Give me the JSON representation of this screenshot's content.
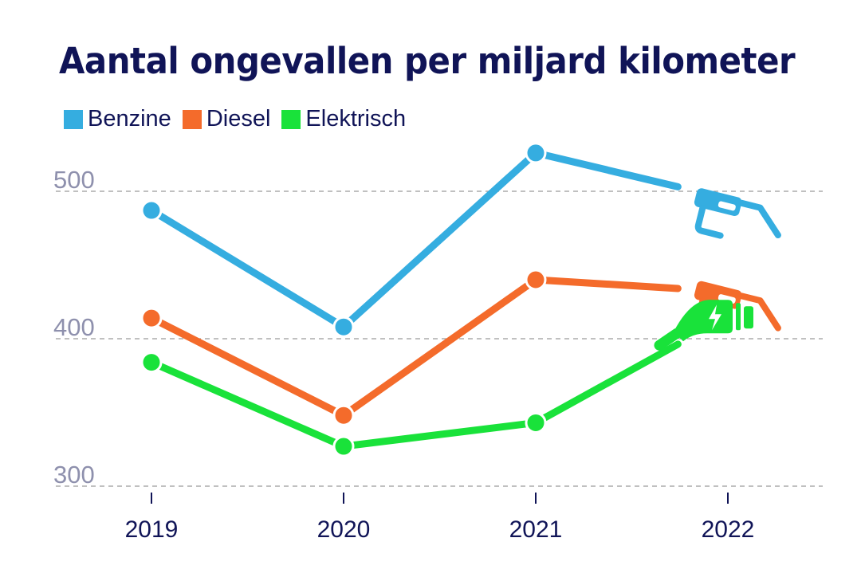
{
  "chart_data": {
    "type": "line",
    "title": "Aantal ongevallen per miljard kilometer",
    "categories": [
      "2019",
      "2020",
      "2021",
      "2022"
    ],
    "y_ticks": [
      300,
      400,
      500
    ],
    "ylim": [
      295,
      560
    ],
    "grid": "horizontal dashed",
    "legend_position": "top-left",
    "series": [
      {
        "name": "Benzine",
        "color": "#35ade0",
        "values": [
          487,
          408,
          526,
          495
        ],
        "end_icon": "fuel-nozzle-icon"
      },
      {
        "name": "Diesel",
        "color": "#f46b2b",
        "values": [
          414,
          348,
          440,
          432
        ],
        "end_icon": "fuel-nozzle-icon"
      },
      {
        "name": "Elektrisch",
        "color": "#19e23a",
        "values": [
          384,
          327,
          343,
          415
        ],
        "end_icon": "ev-charger-plug-icon"
      }
    ]
  }
}
